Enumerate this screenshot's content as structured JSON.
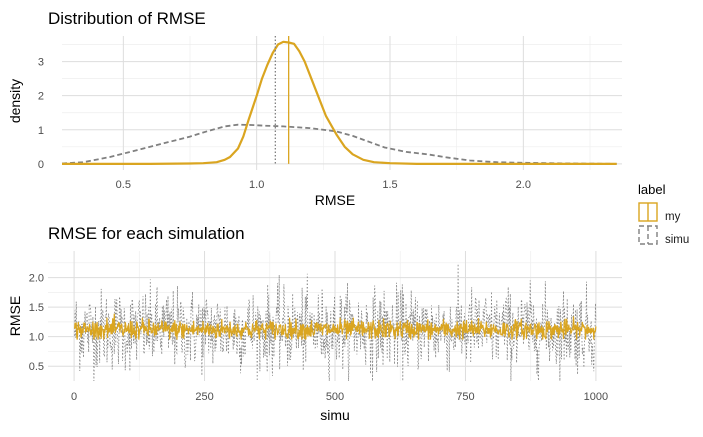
{
  "colors": {
    "my": "#DAA520",
    "simu": "#808080",
    "grid_major": "#dddddd",
    "grid_minor": "#eeeeee"
  },
  "legend": {
    "title": "label",
    "items": [
      {
        "name": "my",
        "color": "#DAA520",
        "linetype": "solid"
      },
      {
        "name": "simu",
        "color": "#808080",
        "linetype": "dashed"
      }
    ]
  },
  "chart_data": [
    {
      "type": "line",
      "title": "Distribution of RMSE",
      "xlabel": "RMSE",
      "ylabel": "density",
      "xlim": [
        0.27,
        2.37
      ],
      "ylim": [
        -0.18,
        3.75
      ],
      "x_ticks": [
        0.5,
        1.0,
        1.5,
        2.0
      ],
      "x_tick_labels": [
        "0.5",
        "1.0",
        "1.5",
        "2.0"
      ],
      "y_ticks": [
        0,
        1,
        2,
        3
      ],
      "y_tick_labels": [
        "0",
        "1",
        "2",
        "3"
      ],
      "grid": true,
      "vlines": [
        {
          "series": "my",
          "x": 1.12,
          "linetype": "solid"
        },
        {
          "series": "simu",
          "x": 1.07,
          "linetype": "dotted"
        }
      ],
      "series": [
        {
          "name": "my",
          "linetype": "solid",
          "x": [
            0.27,
            0.6,
            0.75,
            0.8,
            0.85,
            0.88,
            0.9,
            0.93,
            0.95,
            0.97,
            1.0,
            1.02,
            1.04,
            1.06,
            1.08,
            1.1,
            1.12,
            1.14,
            1.16,
            1.18,
            1.2,
            1.23,
            1.26,
            1.3,
            1.33,
            1.36,
            1.4,
            1.44,
            1.5,
            1.6,
            2.0,
            2.35
          ],
          "y": [
            0.0,
            0.0,
            0.01,
            0.02,
            0.05,
            0.12,
            0.2,
            0.45,
            0.8,
            1.3,
            2.0,
            2.5,
            2.9,
            3.25,
            3.5,
            3.58,
            3.56,
            3.52,
            3.3,
            3.0,
            2.6,
            2.0,
            1.4,
            0.85,
            0.5,
            0.28,
            0.12,
            0.05,
            0.02,
            0.0,
            0.0,
            0.0
          ]
        },
        {
          "name": "simu",
          "linetype": "dashed",
          "x": [
            0.27,
            0.35,
            0.45,
            0.55,
            0.65,
            0.75,
            0.82,
            0.88,
            0.93,
            0.98,
            1.03,
            1.1,
            1.2,
            1.3,
            1.36,
            1.42,
            1.48,
            1.56,
            1.64,
            1.72,
            1.8,
            1.9,
            2.0,
            2.1,
            2.2,
            2.35
          ],
          "y": [
            0.01,
            0.05,
            0.2,
            0.4,
            0.6,
            0.8,
            0.97,
            1.1,
            1.15,
            1.14,
            1.12,
            1.1,
            1.05,
            0.95,
            0.82,
            0.65,
            0.48,
            0.35,
            0.28,
            0.18,
            0.1,
            0.05,
            0.03,
            0.02,
            0.01,
            0.0
          ]
        }
      ]
    },
    {
      "type": "line",
      "title": "RMSE for each simulation",
      "xlabel": "simu",
      "ylabel": "RMSE",
      "xlim": [
        -50,
        1050
      ],
      "ylim": [
        0.25,
        2.45
      ],
      "x_ticks": [
        0,
        250,
        500,
        750,
        1000
      ],
      "x_tick_labels": [
        "0",
        "250",
        "500",
        "750",
        "1000"
      ],
      "y_ticks": [
        0.5,
        1.0,
        1.5,
        2.0
      ],
      "y_tick_labels": [
        "0.5",
        "1.0",
        "1.5",
        "2.0"
      ],
      "grid": true,
      "series": [
        {
          "name": "simu",
          "linetype": "dotted",
          "n_points": 1000,
          "x_range": [
            1,
            1000
          ],
          "y_mean": 1.12,
          "y_min": 0.25,
          "y_max": 2.38
        },
        {
          "name": "my",
          "linetype": "solid",
          "n_points": 1000,
          "x_range": [
            1,
            1000
          ],
          "y_mean": 1.12,
          "y_min": 0.95,
          "y_max": 1.42
        }
      ]
    }
  ]
}
